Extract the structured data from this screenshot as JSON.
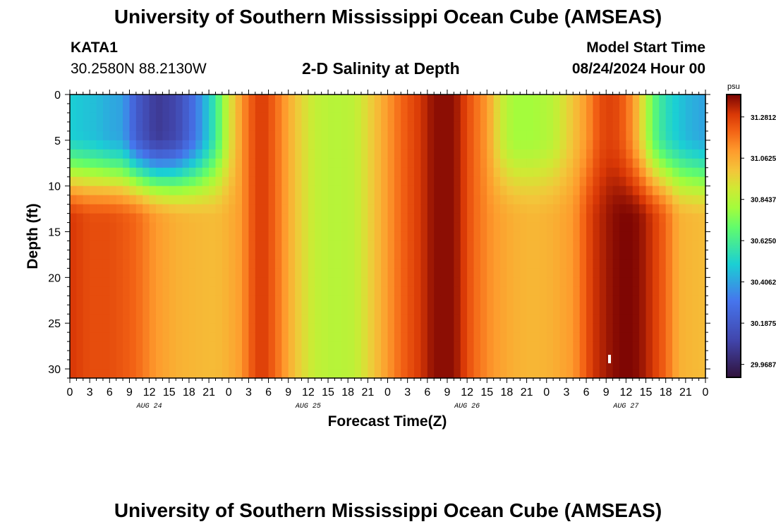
{
  "page": {
    "title_top": "University of Southern Mississippi Ocean Cube (AMSEAS)",
    "title_bottom": "University of Southern Mississippi Ocean Cube (AMSEAS)",
    "station": "KATA1",
    "coords": "30.2580N  88.2130W",
    "plot_title": "2-D Salinity at Depth",
    "model_start_label": "Model Start Time",
    "model_start_value": "08/24/2024 Hour 00"
  },
  "chart_data": {
    "type": "heatmap",
    "title": "2-D Salinity at Depth",
    "xlabel": "Forecast Time(Z)",
    "ylabel": "Depth (ft)",
    "x_range_hours": [
      0,
      96
    ],
    "ylim": [
      0,
      31
    ],
    "x_tick_labels": [
      "0",
      "3",
      "6",
      "9",
      "12",
      "15",
      "18",
      "21",
      "0",
      "3",
      "6",
      "9",
      "12",
      "15",
      "18",
      "21",
      "0",
      "3",
      "6",
      "9",
      "12",
      "15",
      "18",
      "21",
      "0",
      "3",
      "6",
      "9",
      "12",
      "15",
      "18",
      "21",
      "0"
    ],
    "y_ticks": [
      0,
      5,
      10,
      15,
      20,
      25,
      30
    ],
    "date_labels": [
      "AUG 24",
      "AUG 25",
      "AUG 26",
      "AUG 27"
    ],
    "date_label_hours": [
      12,
      36,
      60,
      84
    ],
    "colorbar": {
      "unit": "psu",
      "ticks": [
        "31.2812",
        "31.0625",
        "30.8437",
        "30.6250",
        "30.4062",
        "30.1875",
        "29.9687"
      ],
      "tick_values": [
        31.2812,
        31.0625,
        30.8437,
        30.625,
        30.4062,
        30.1875,
        29.9687
      ],
      "range": [
        29.9,
        31.4
      ]
    },
    "surface_profile_psu": [
      30.5,
      30.48,
      30.46,
      30.42,
      30.4,
      30.2,
      30.05,
      30.1,
      30.3,
      30.6,
      30.9,
      31.2,
      31.3,
      31.2,
      31.0,
      30.87,
      30.84,
      30.86,
      31.0,
      31.2,
      31.3,
      31.38,
      31.38,
      31.2,
      31.1,
      30.9,
      30.8,
      30.8,
      30.85,
      30.95,
      31.1,
      31.25,
      31.28,
      31.2,
      31.0,
      30.7,
      30.55,
      30.45,
      30.4
    ],
    "surface_profile_hours": [
      0,
      2,
      4,
      6,
      8,
      10,
      13,
      16,
      19,
      22,
      24,
      27,
      29,
      31,
      34,
      37,
      40,
      43,
      46,
      50,
      53,
      55,
      58,
      61,
      63,
      65,
      67,
      70,
      73,
      75,
      78,
      80,
      82,
      84,
      86,
      88,
      90,
      93,
      96
    ],
    "bottom_profile_psu": [
      31.3,
      31.25,
      31.25,
      31.23,
      31.2,
      31.1,
      31.05,
      31.03,
      31.02,
      31.05,
      31.1,
      31.2,
      31.3,
      31.2,
      31.0,
      30.87,
      30.84,
      30.86,
      31.0,
      31.2,
      31.3,
      31.38,
      31.38,
      31.2,
      31.1,
      31.05,
      31.03,
      31.05,
      31.1,
      31.3,
      31.38,
      31.4,
      31.38,
      31.3,
      31.2,
      31.05,
      31.03,
      31.02
    ],
    "bottom_profile_hours": [
      0,
      3,
      6,
      8,
      10,
      13,
      16,
      19,
      22,
      24,
      26,
      27,
      29,
      31,
      34,
      37,
      40,
      43,
      46,
      50,
      53,
      55,
      58,
      61,
      64,
      67,
      70,
      73,
      76,
      79,
      82,
      84,
      86,
      88,
      90,
      92,
      94,
      96
    ]
  }
}
